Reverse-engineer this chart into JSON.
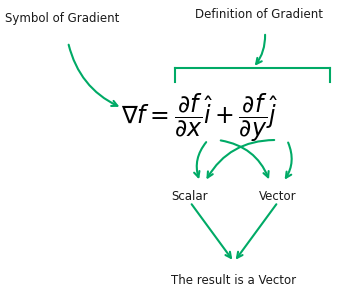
{
  "bg_color": "#ffffff",
  "arrow_color": "#00aa66",
  "text_color": "#1a1a1a",
  "figsize": [
    3.56,
    2.94
  ],
  "dpi": 100,
  "labels": {
    "symbol_of_gradient": "Symbol of Gradient",
    "definition_of_gradient": "Definition of Gradient",
    "scalar": "Scalar",
    "vector": "Vector",
    "result": "The result is a Vector"
  }
}
